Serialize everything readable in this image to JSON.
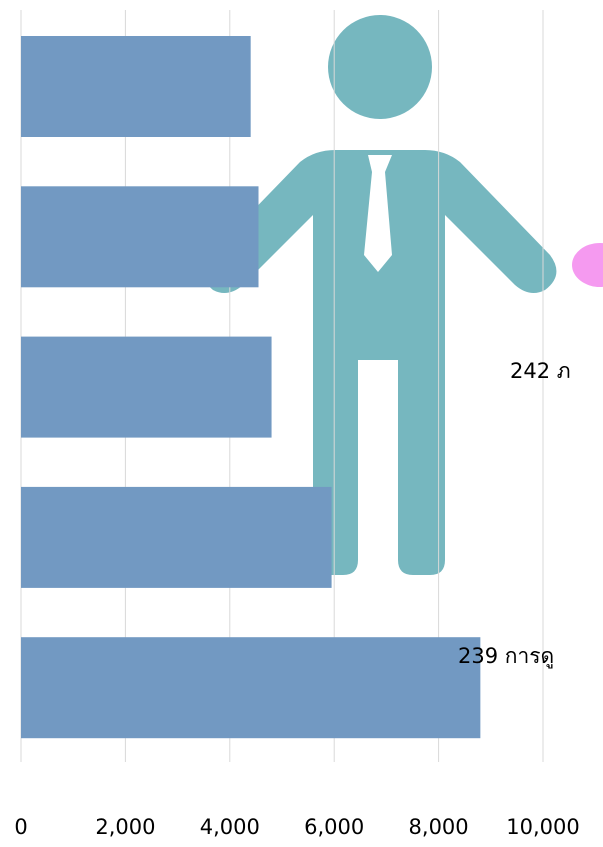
{
  "chart_data": {
    "type": "bar",
    "orientation": "horizontal",
    "categories": [
      null,
      null,
      null,
      null,
      null
    ],
    "values": [
      4400,
      4550,
      4800,
      5950,
      8800
    ],
    "color": "#7299c2",
    "xlim": [
      0,
      10000
    ],
    "xticks": [
      0,
      {
        "value": 2000,
        "label": "2,000"
      },
      {
        "value": 4000,
        "label": "4,000"
      },
      {
        "value": 6000,
        "label": "6,000"
      },
      {
        "value": 8000,
        "label": "8,000"
      },
      {
        "value": 10000,
        "label": "10,000"
      }
    ],
    "grid": true,
    "annotations": [
      "242 ภ",
      "239 การดู"
    ]
  }
}
